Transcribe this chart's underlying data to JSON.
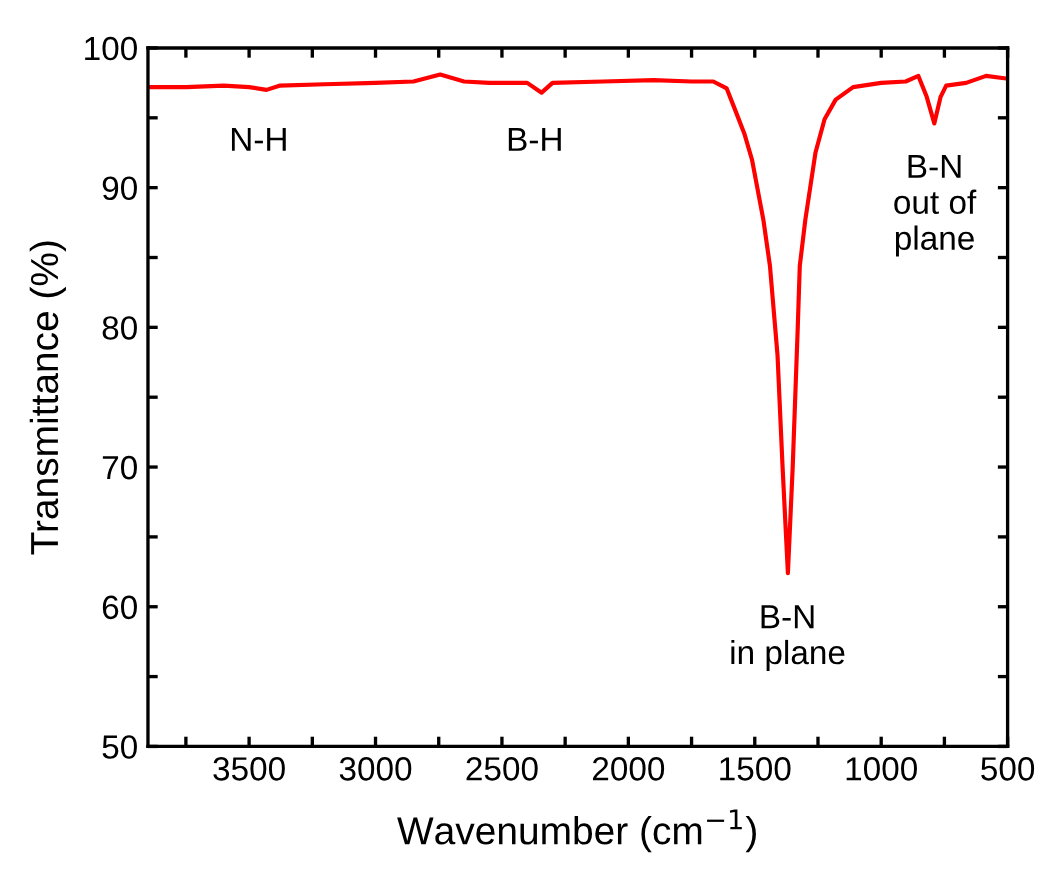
{
  "chart_data": {
    "type": "line",
    "xlabel": "Wavenumber (cm$^{−1}$)",
    "ylabel": "Transmittance (%)",
    "x": [
      3900,
      3750,
      3600,
      3500,
      3431,
      3380,
      3200,
      3000,
      2850,
      2744,
      2650,
      2550,
      2400,
      2343,
      2300,
      2100,
      1900,
      1750,
      1664,
      1611,
      1572,
      1540,
      1511,
      1466,
      1440,
      1410,
      1390,
      1369,
      1350,
      1330,
      1322,
      1300,
      1260,
      1224,
      1180,
      1111,
      1000,
      903,
      853,
      820,
      790,
      765,
      743,
      664,
      585,
      500
    ],
    "series": [
      {
        "color": "#ff0000",
        "values": [
          97.2,
          97.2,
          97.3,
          97.2,
          97.0,
          97.3,
          97.4,
          97.5,
          97.6,
          98.1,
          97.6,
          97.5,
          97.5,
          96.8,
          97.5,
          97.6,
          97.7,
          97.6,
          97.6,
          97.1,
          95.3,
          93.8,
          92.0,
          87.7,
          84.4,
          78.0,
          70.0,
          62.4,
          70.0,
          80.0,
          84.4,
          87.7,
          92.5,
          94.9,
          96.3,
          97.2,
          97.5,
          97.6,
          98.0,
          96.5,
          94.6,
          96.5,
          97.3,
          97.5,
          98.0,
          97.8
        ]
      }
    ],
    "xlim": [
      3900,
      500
    ],
    "ylim": [
      50,
      100
    ],
    "xticks": [
      {
        "value": 3750,
        "label": null
      },
      3500,
      {
        "value": 3250,
        "label": null
      },
      3000,
      {
        "value": 2750,
        "label": null
      },
      2500,
      {
        "value": 2250,
        "label": null
      },
      2000,
      {
        "value": 1750,
        "label": null
      },
      1500,
      {
        "value": 1250,
        "label": null
      },
      1000,
      {
        "value": 750,
        "label": null
      },
      500
    ],
    "yticks": [
      50,
      {
        "value": 55,
        "label": null
      },
      60,
      {
        "value": 65,
        "label": null
      },
      70,
      {
        "value": 75,
        "label": null
      },
      80,
      {
        "value": 85,
        "label": null
      },
      90,
      {
        "value": 95,
        "label": null
      },
      100
    ],
    "annotations": [
      "N-H",
      "B-H",
      "B-N\nin plane",
      "B-N\nout of\nplane"
    ],
    "grid": false,
    "legend": false,
    "marker": "none",
    "line_style": "solid"
  }
}
